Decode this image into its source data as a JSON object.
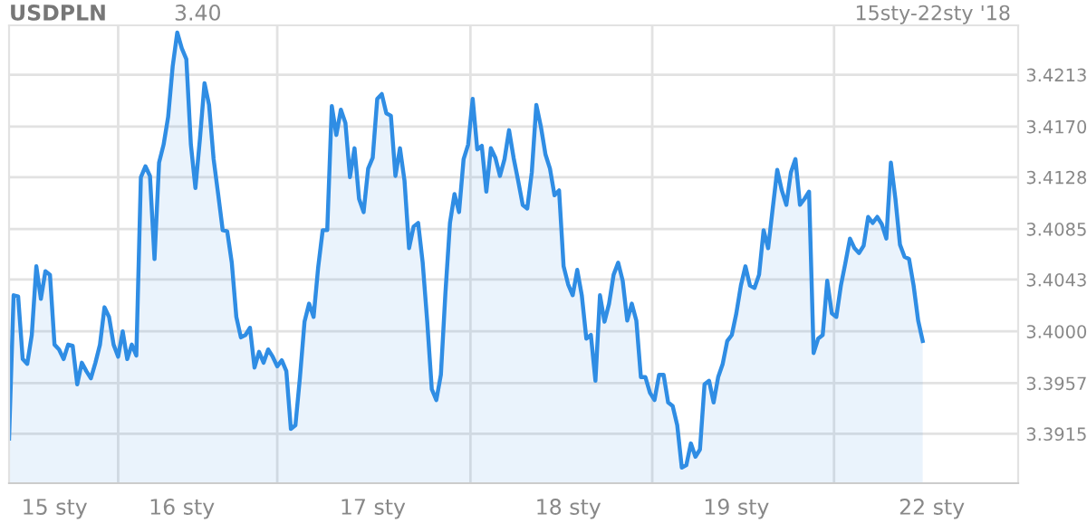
{
  "chart_data": {
    "type": "area",
    "title": "USDPLN",
    "subtitle": "15sty-22sty '18",
    "annotations": [
      "3.40"
    ],
    "color": "#2f8de4",
    "grid": true,
    "marker": "none",
    "line_style": "solid",
    "categories": [
      null,
      null,
      null,
      null,
      null,
      null,
      null,
      null,
      null,
      null,
      "15 sty",
      null,
      null,
      null,
      null,
      null,
      null,
      null,
      null,
      null,
      null,
      null,
      null,
      null,
      null,
      null,
      null,
      null,
      null,
      null,
      null,
      null,
      null,
      null,
      null,
      null,
      null,
      null,
      "16 sty",
      null,
      null,
      null,
      null,
      null,
      null,
      null,
      null,
      null,
      null,
      null,
      null,
      null,
      null,
      null,
      null,
      null,
      null,
      null,
      null,
      null,
      null,
      null,
      null,
      null,
      null,
      null,
      null,
      null,
      null,
      null,
      null,
      null,
      null,
      null,
      null,
      null,
      null,
      null,
      null,
      null,
      "17 sty",
      null,
      null,
      null,
      null,
      null,
      null,
      null,
      null,
      null,
      null,
      null,
      null,
      null,
      null,
      null,
      null,
      null,
      null,
      null,
      null,
      null,
      null,
      null,
      null,
      null,
      null,
      null,
      null,
      null,
      null,
      null,
      null,
      null,
      null,
      null,
      null,
      null,
      null,
      null,
      null,
      null,
      null,
      "18 sty",
      null,
      null,
      null,
      null,
      null,
      null,
      null,
      null,
      null,
      null,
      null,
      null,
      null,
      null,
      null,
      null,
      null,
      null,
      null,
      null,
      null,
      null,
      null,
      null,
      null,
      null,
      null,
      null,
      null,
      null,
      null,
      null,
      null,
      null,
      null,
      null,
      "19 sty",
      null,
      null,
      null,
      null,
      null,
      null,
      null,
      null,
      null,
      null,
      null,
      null,
      null,
      null,
      null,
      null,
      null,
      null,
      null,
      null,
      null,
      null,
      null,
      null,
      null,
      null,
      null,
      null,
      null,
      null,
      null,
      null,
      null,
      null,
      null,
      null,
      null,
      null,
      null,
      null,
      null,
      null,
      "22 sty",
      null,
      null,
      null,
      null,
      null,
      null,
      null,
      null,
      null,
      null,
      null,
      null,
      null,
      null,
      null,
      null,
      null,
      null,
      null
    ],
    "values": [
      3.3911,
      3.403,
      3.4029,
      3.3977,
      3.3973,
      3.3997,
      3.4054,
      3.4027,
      3.405,
      3.4047,
      3.3989,
      3.3985,
      3.3977,
      3.3989,
      3.3988,
      3.3956,
      3.3974,
      3.3967,
      3.3961,
      3.3974,
      3.3989,
      3.402,
      3.4012,
      3.3989,
      3.3979,
      3.4,
      3.3977,
      3.3989,
      3.398,
      3.4128,
      3.4137,
      3.4129,
      3.406,
      3.414,
      3.4155,
      3.4178,
      3.422,
      3.4248,
      3.4235,
      3.4226,
      3.4155,
      3.4119,
      3.416,
      3.4206,
      3.4188,
      3.4143,
      3.4114,
      3.4084,
      3.4083,
      3.4057,
      3.4012,
      3.3995,
      3.3997,
      3.4003,
      3.397,
      3.3983,
      3.3974,
      3.3985,
      3.3979,
      3.3971,
      3.3976,
      3.3967,
      3.3919,
      3.3922,
      3.3962,
      3.4008,
      3.4023,
      3.4012,
      3.4053,
      3.4084,
      3.4084,
      3.4187,
      3.4163,
      3.4184,
      3.4173,
      3.4128,
      3.4152,
      3.411,
      3.4099,
      3.4135,
      3.4144,
      3.4193,
      3.4197,
      3.4181,
      3.4179,
      3.4129,
      3.4152,
      3.4125,
      3.4069,
      3.4087,
      3.409,
      3.4057,
      3.4008,
      3.3952,
      3.3943,
      3.3964,
      3.4032,
      3.409,
      3.4114,
      3.4099,
      3.4143,
      3.4155,
      3.4193,
      3.4151,
      3.4154,
      3.4116,
      3.4152,
      3.4144,
      3.4129,
      3.4143,
      3.4167,
      3.4144,
      3.4125,
      3.4105,
      3.4102,
      3.4132,
      3.4188,
      3.417,
      3.4147,
      3.4135,
      3.4113,
      3.4117,
      3.4054,
      3.4039,
      3.403,
      3.4051,
      3.403,
      3.3994,
      3.3997,
      3.3959,
      3.403,
      3.4008,
      3.4023,
      3.4047,
      3.4057,
      3.4042,
      3.4009,
      3.4023,
      3.4009,
      3.3962,
      3.3962,
      3.3949,
      3.3943,
      3.3964,
      3.3964,
      3.3941,
      3.3938,
      3.3922,
      3.3887,
      3.3889,
      3.3907,
      3.3896,
      3.3902,
      3.3956,
      3.3959,
      3.3941,
      3.3962,
      3.3973,
      3.3992,
      3.3997,
      3.4015,
      3.4038,
      3.4054,
      3.4038,
      3.4036,
      3.4047,
      3.4084,
      3.4069,
      3.4102,
      3.4134,
      3.4117,
      3.4105,
      3.4132,
      3.4143,
      3.4105,
      3.411,
      3.4116,
      3.3982,
      3.3994,
      3.3997,
      3.4042,
      3.4015,
      3.4012,
      3.4038,
      3.4057,
      3.4077,
      3.4069,
      3.4065,
      3.4071,
      3.4095,
      3.409,
      3.4095,
      3.4089,
      3.4077,
      3.414,
      3.411,
      3.4072,
      3.4062,
      3.406,
      3.4038,
      3.4009,
      3.3992,
      null,
      null,
      null,
      null,
      null,
      null,
      null,
      null,
      null,
      null,
      null,
      null,
      null,
      null,
      null,
      null,
      null,
      null,
      null,
      null,
      null
    ],
    "ylim": [
      3.3874,
      3.4254
    ],
    "yticks": [
      {
        "value": 3.3915,
        "label": "3.3915"
      },
      {
        "value": 3.3957,
        "label": "3.3957"
      },
      {
        "value": 3.4,
        "label": "3.4000"
      },
      {
        "value": 3.4043,
        "label": "3.4043"
      },
      {
        "value": 3.4085,
        "label": "3.4085"
      },
      {
        "value": 3.4128,
        "label": "3.4128"
      },
      {
        "value": 3.417,
        "label": "3.4170"
      },
      {
        "value": 3.4213,
        "label": "3.4213"
      }
    ]
  }
}
